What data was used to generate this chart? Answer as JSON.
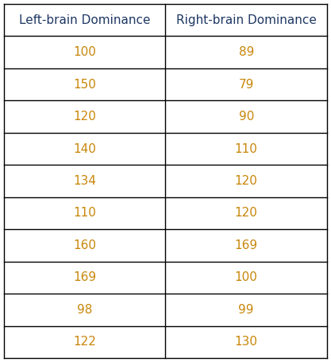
{
  "col1_header": "Left-brain Dominance",
  "col2_header": "Right-brain Dominance",
  "col1_values": [
    100,
    150,
    120,
    140,
    134,
    110,
    160,
    169,
    98,
    122
  ],
  "col2_values": [
    89,
    79,
    90,
    110,
    120,
    120,
    169,
    100,
    99,
    130
  ],
  "header_text_color": "#1f3864",
  "data_text_color": "#c8860a",
  "background_color": "#ffffff",
  "line_color": "#000000",
  "header_fontsize": 11,
  "data_fontsize": 11,
  "fig_width": 4.17,
  "fig_height": 4.55,
  "dpi": 100
}
